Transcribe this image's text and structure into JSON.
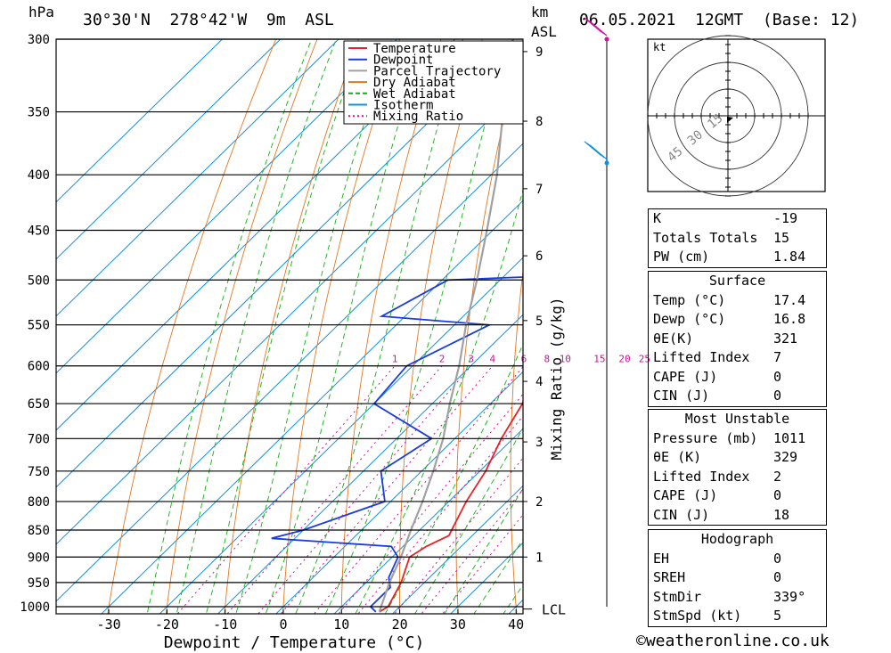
{
  "header": {
    "hpa_label": "hPa",
    "location": "30°30'N  278°42'W  9m  ASL",
    "km_label": "km",
    "asl_label": "ASL",
    "datetime": "06.05.2021  12GMT  (Base: 12)"
  },
  "footer": {
    "copyright": "©weatheronline.co.uk"
  },
  "hodograph": {
    "unit_label": "kt",
    "ring_labels": [
      "15",
      "30",
      "45"
    ]
  },
  "indices": {
    "rows": [
      {
        "label": "K",
        "value": "-19"
      },
      {
        "label": "Totals Totals",
        "value": "15"
      },
      {
        "label": "PW (cm)",
        "value": "1.84"
      }
    ]
  },
  "surface": {
    "title": "Surface",
    "rows": [
      {
        "label": "Temp (°C)",
        "value": "17.4"
      },
      {
        "label": "Dewp (°C)",
        "value": "16.8"
      },
      {
        "label": "θE(K)",
        "value": "321"
      },
      {
        "label": "Lifted Index",
        "value": "7"
      },
      {
        "label": "CAPE (J)",
        "value": "0"
      },
      {
        "label": "CIN (J)",
        "value": "0"
      }
    ]
  },
  "most_unstable": {
    "title": "Most Unstable",
    "rows": [
      {
        "label": "Pressure (mb)",
        "value": "1011"
      },
      {
        "label": "θE (K)",
        "value": "329"
      },
      {
        "label": "Lifted Index",
        "value": "2"
      },
      {
        "label": "CAPE (J)",
        "value": "0"
      },
      {
        "label": "CIN (J)",
        "value": "18"
      }
    ]
  },
  "hodograph_table": {
    "title": "Hodograph",
    "rows": [
      {
        "label": "EH",
        "value": "0"
      },
      {
        "label": "SREH",
        "value": "0"
      },
      {
        "label": "StmDir",
        "value": "339°"
      },
      {
        "label": "StmSpd (kt)",
        "value": "5"
      }
    ]
  },
  "chart_data": {
    "type": "line",
    "subtype": "skew-T log-P",
    "xlabel": "Dewpoint / Temperature (°C)",
    "ylabel_right": "Mixing Ratio (g/kg)",
    "x_ticks": [
      -30,
      -20,
      -10,
      0,
      10,
      20,
      30,
      40
    ],
    "pressure_levels": [
      300,
      350,
      400,
      450,
      500,
      550,
      600,
      650,
      700,
      750,
      800,
      850,
      900,
      950,
      1000
    ],
    "km_ticks": [
      1,
      2,
      3,
      4,
      5,
      6,
      7,
      8,
      9
    ],
    "lcl_label": "LCL",
    "mixing_ratio_labels": [
      "1",
      "2",
      "3",
      "4",
      "6",
      "8",
      "10",
      "15",
      "20",
      "25"
    ],
    "legend": {
      "position": "top-right",
      "entries": [
        {
          "name": "Temperature",
          "color": "#e8202a"
        },
        {
          "name": "Dewpoint",
          "color": "#1a3ce0"
        },
        {
          "name": "Parcel Trajectory",
          "color": "#a0a0a0"
        },
        {
          "name": "Dry Adiabat",
          "color": "#e07820"
        },
        {
          "name": "Wet Adiabat",
          "color": "#10b010"
        },
        {
          "name": "Isotherm",
          "color": "#1090e0"
        },
        {
          "name": "Mixing Ratio",
          "color": "#d010a0"
        }
      ]
    },
    "series": [
      {
        "name": "Temperature",
        "color": "#e8202a",
        "points": [
          [
            1011,
            17.4
          ],
          [
            1000,
            18
          ],
          [
            950,
            16
          ],
          [
            900,
            13
          ],
          [
            880,
            14
          ],
          [
            860,
            16
          ],
          [
            850,
            15.5
          ],
          [
            800,
            13
          ],
          [
            750,
            11
          ],
          [
            700,
            8
          ],
          [
            650,
            5.5
          ],
          [
            600,
            1
          ],
          [
            550,
            -4
          ],
          [
            500,
            -9
          ],
          [
            450,
            -16
          ],
          [
            400,
            -23
          ],
          [
            350,
            -33
          ],
          [
            300,
            -44
          ]
        ]
      },
      {
        "name": "Dewpoint",
        "color": "#1a3ce0",
        "points": [
          [
            1011,
            16.8
          ],
          [
            1000,
            15
          ],
          [
            960,
            15
          ],
          [
            940,
            13
          ],
          [
            900,
            11
          ],
          [
            880,
            8
          ],
          [
            865,
            -14
          ],
          [
            850,
            -10
          ],
          [
            800,
            -1
          ],
          [
            750,
            -7
          ],
          [
            700,
            -4
          ],
          [
            650,
            -20
          ],
          [
            600,
            -21
          ],
          [
            550,
            -14
          ],
          [
            540,
            -34
          ],
          [
            500,
            -29
          ],
          [
            495,
            -9
          ],
          [
            455,
            -7
          ],
          [
            450,
            -4
          ],
          [
            400,
            -18
          ],
          [
            385,
            -22
          ],
          [
            360,
            -22
          ],
          [
            320,
            -35
          ],
          [
            310,
            -37
          ],
          [
            300,
            -38
          ]
        ]
      },
      {
        "name": "Parcel Trajectory",
        "color": "#a0a0a0",
        "points": [
          [
            1011,
            17.4
          ],
          [
            1000,
            16.8
          ],
          [
            950,
            14
          ],
          [
            900,
            11.5
          ],
          [
            850,
            8.5
          ],
          [
            800,
            5.5
          ],
          [
            750,
            2
          ],
          [
            700,
            -2
          ],
          [
            650,
            -7
          ],
          [
            600,
            -12
          ],
          [
            550,
            -18
          ],
          [
            500,
            -24
          ],
          [
            450,
            -31
          ],
          [
            400,
            -39
          ],
          [
            350,
            -49
          ],
          [
            300,
            -60
          ]
        ]
      }
    ],
    "wind_barbs": [
      {
        "pressure": 300,
        "color": "#d010a0"
      },
      {
        "pressure": 390,
        "color": "#1090e0"
      }
    ]
  }
}
